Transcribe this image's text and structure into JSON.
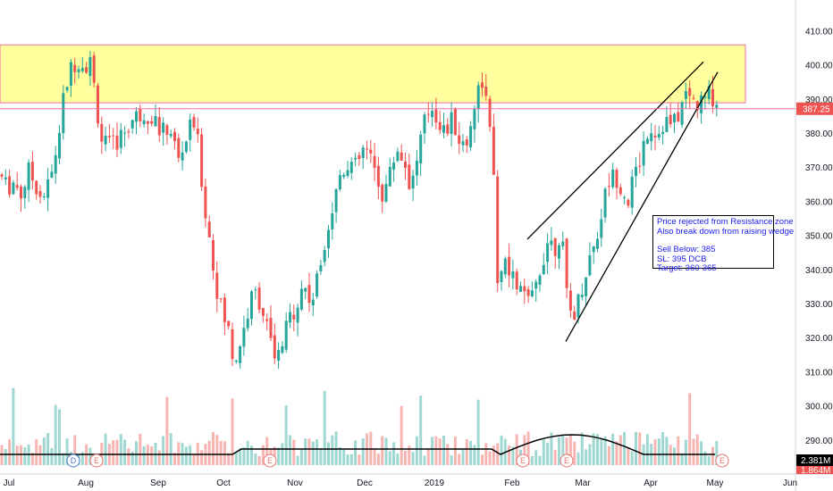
{
  "chart_data": {
    "type": "candlestick",
    "y_axis": {
      "ticks": [
        290,
        300,
        310,
        320,
        330,
        340,
        350,
        360,
        370,
        380,
        390,
        400,
        410,
        420
      ],
      "range": [
        283,
        420
      ]
    },
    "x_axis": {
      "tick_labels": [
        "Jul",
        "Aug",
        "Sep",
        "Oct",
        "Nov",
        "Dec",
        "2019",
        "Feb",
        "Mar",
        "Apr",
        "May",
        "Jun"
      ]
    },
    "current_price_label": "387.25",
    "current_price": 387.25,
    "volume_label": "2.381M",
    "volume_label_2": "1.864M",
    "resistance_zone": {
      "low": 389,
      "high": 406
    },
    "rising_wedge": {
      "upper_line": [
        {
          "date": "Feb",
          "value": 349
        },
        {
          "date": "Apr",
          "value": 401
        }
      ],
      "lower_line": [
        {
          "date": "Mar",
          "value": 319
        },
        {
          "date": "May",
          "value": 398
        }
      ]
    },
    "annotation": {
      "lines": [
        "Price rejected from Resistance zone",
        "Also break down from raising wedge",
        "",
        "Sell Below: 385",
        "SL: 395 DCB",
        "Target: 360-365"
      ]
    },
    "event_markers": [
      {
        "label": "D",
        "month": "Jul"
      },
      {
        "label": "E",
        "month": "Aug"
      },
      {
        "label": "E",
        "month": "Oct"
      },
      {
        "label": "E",
        "month": "Feb"
      },
      {
        "label": "E",
        "month": "Mar"
      },
      {
        "label": "E",
        "month": "May"
      }
    ],
    "colors": {
      "up": "#26a69a",
      "down": "#ef5350",
      "zone_fill": "#ffff9e",
      "zone_border": "#f06eaa",
      "annotation_text": "#1c1cf0"
    }
  }
}
